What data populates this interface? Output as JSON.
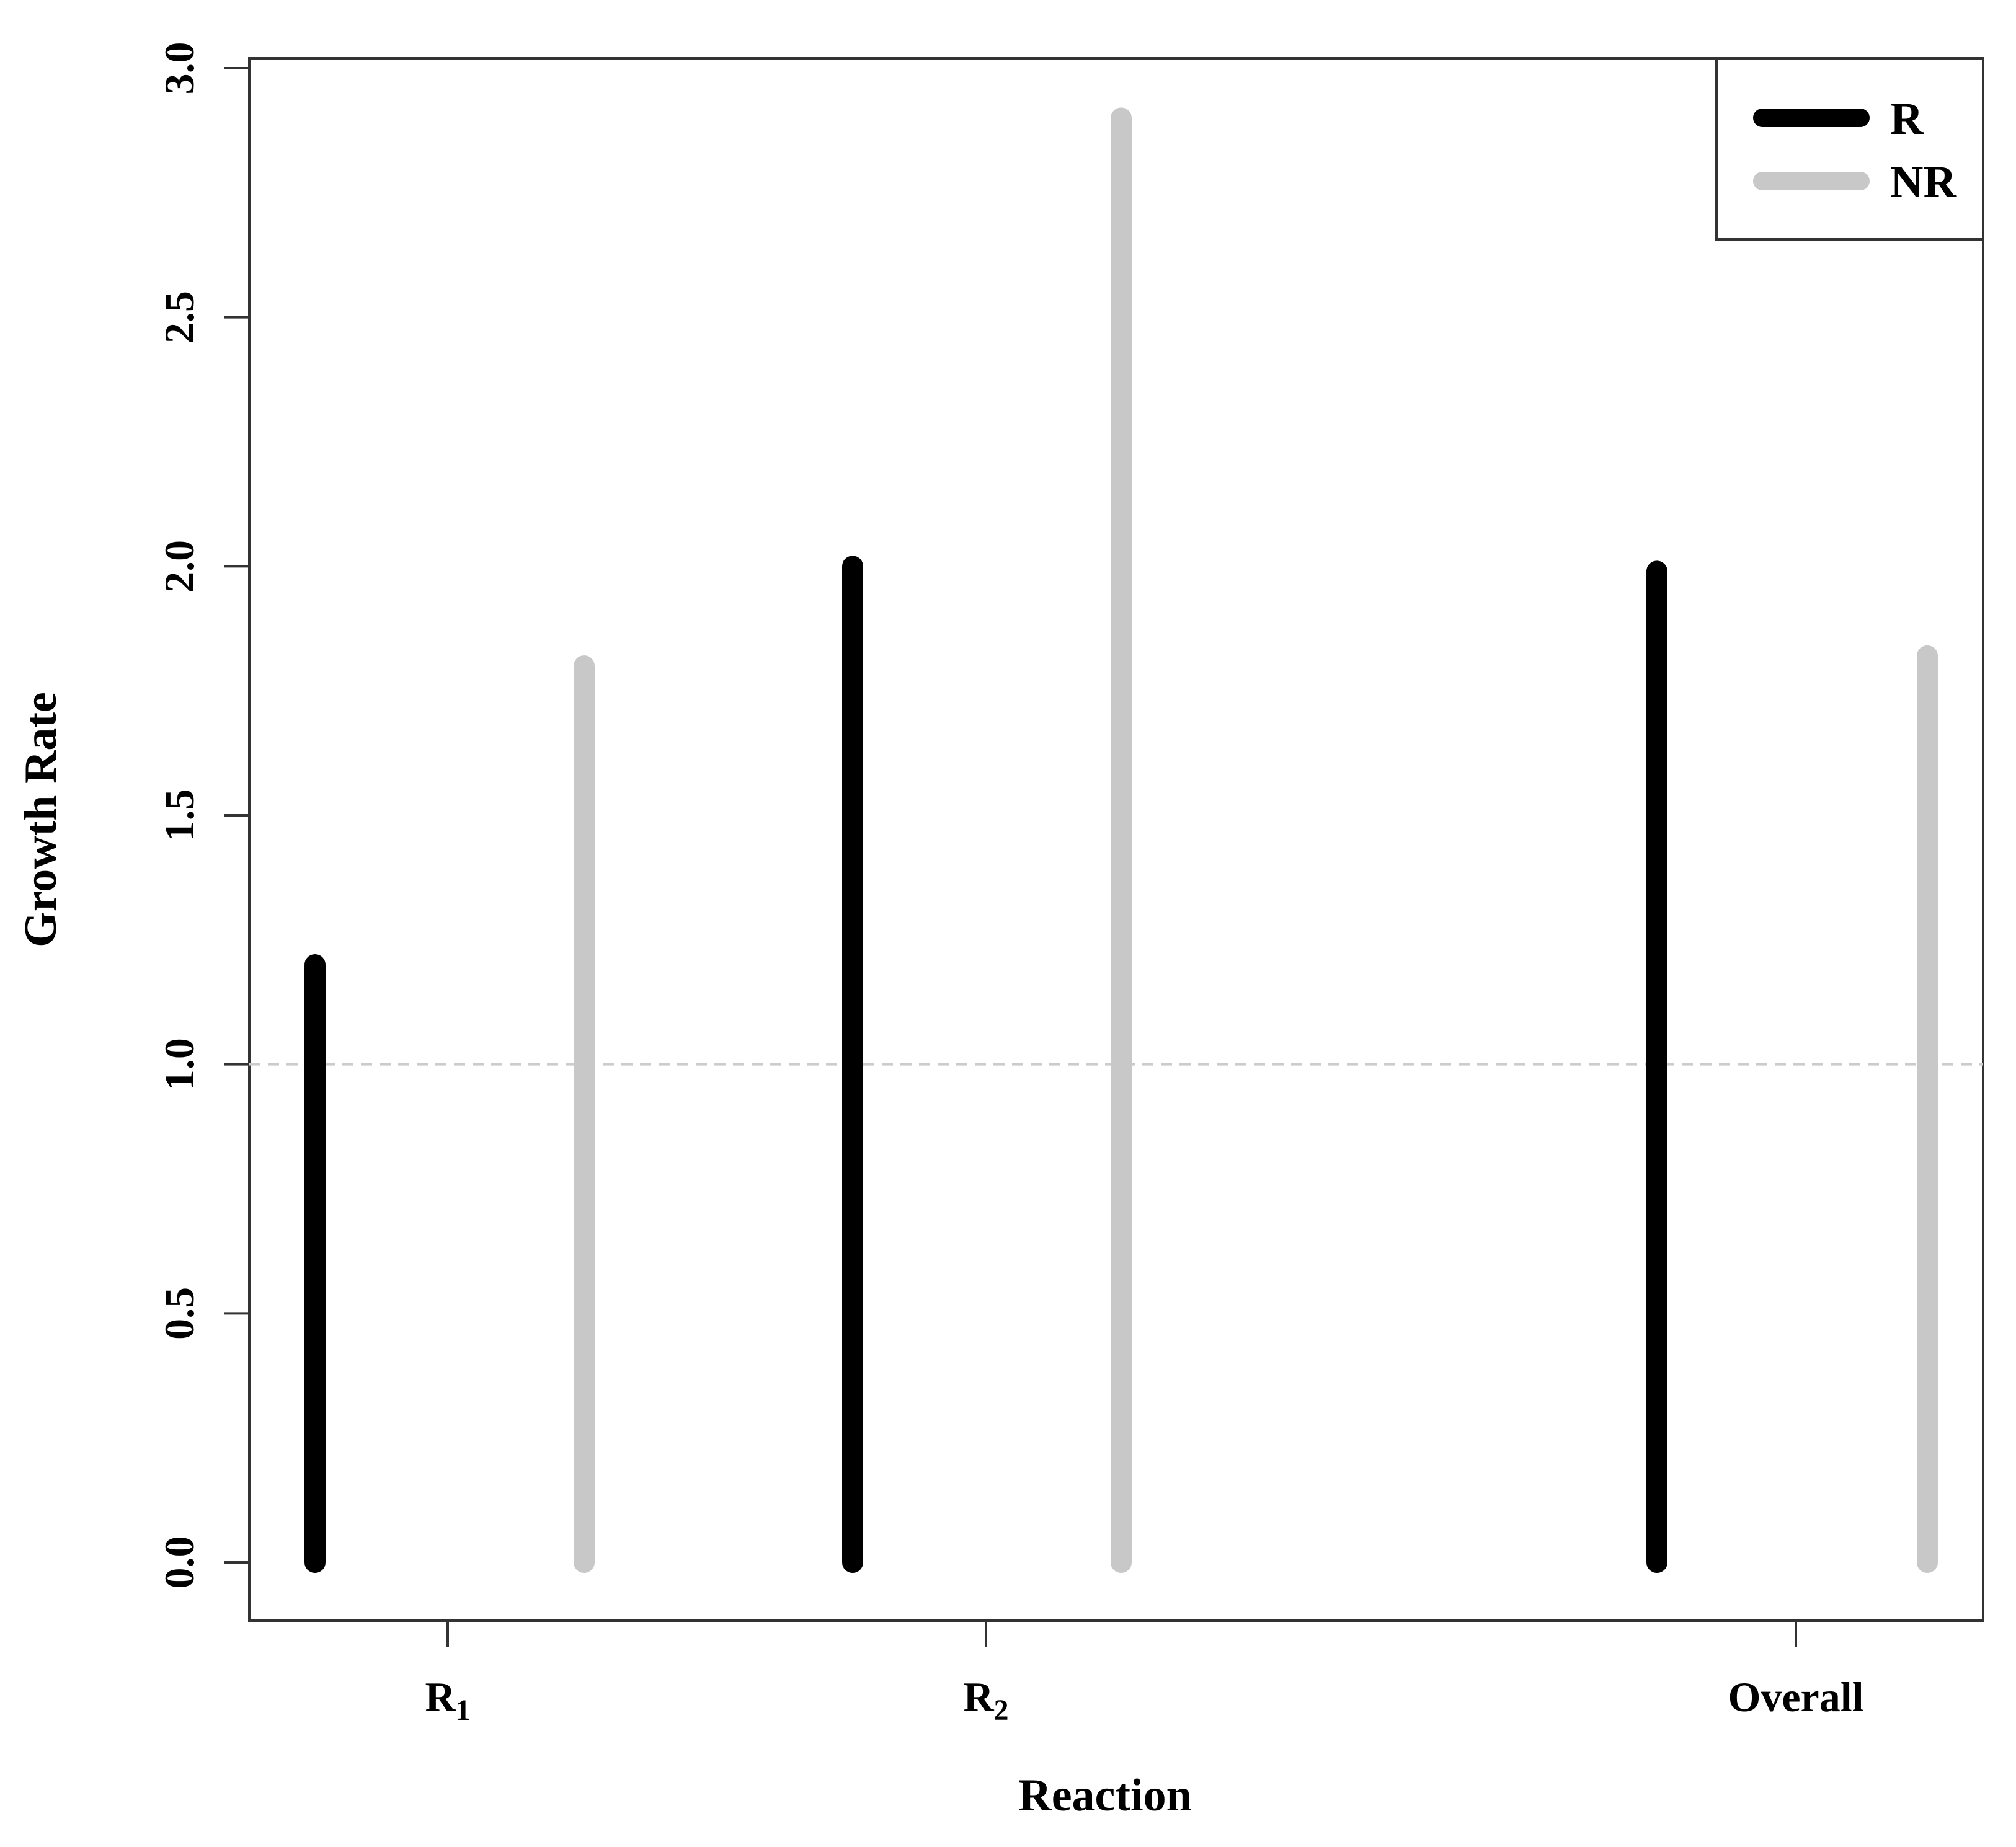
{
  "chart_data": {
    "type": "bar",
    "categories": [
      "R",
      "R",
      "Overall"
    ],
    "category_subscripts": [
      "1",
      "2",
      ""
    ],
    "series": [
      {
        "name": "R",
        "color": "#000000",
        "values": [
          1.2,
          2.0,
          1.99
        ]
      },
      {
        "name": "NR",
        "color": "#c8c8c8",
        "values": [
          1.8,
          2.9,
          1.82
        ]
      }
    ],
    "xlabel": "Reaction",
    "ylabel": "Growth Rate",
    "ylim": [
      0,
      3.0
    ],
    "yticks": [
      "0.0",
      "0.5",
      "1.0",
      "1.5",
      "2.0",
      "2.5",
      "3.0"
    ],
    "reference_line": {
      "y": 1.0,
      "style": "dashed",
      "color": "#cccccc"
    },
    "legend_position": "top-right",
    "grid": false
  }
}
